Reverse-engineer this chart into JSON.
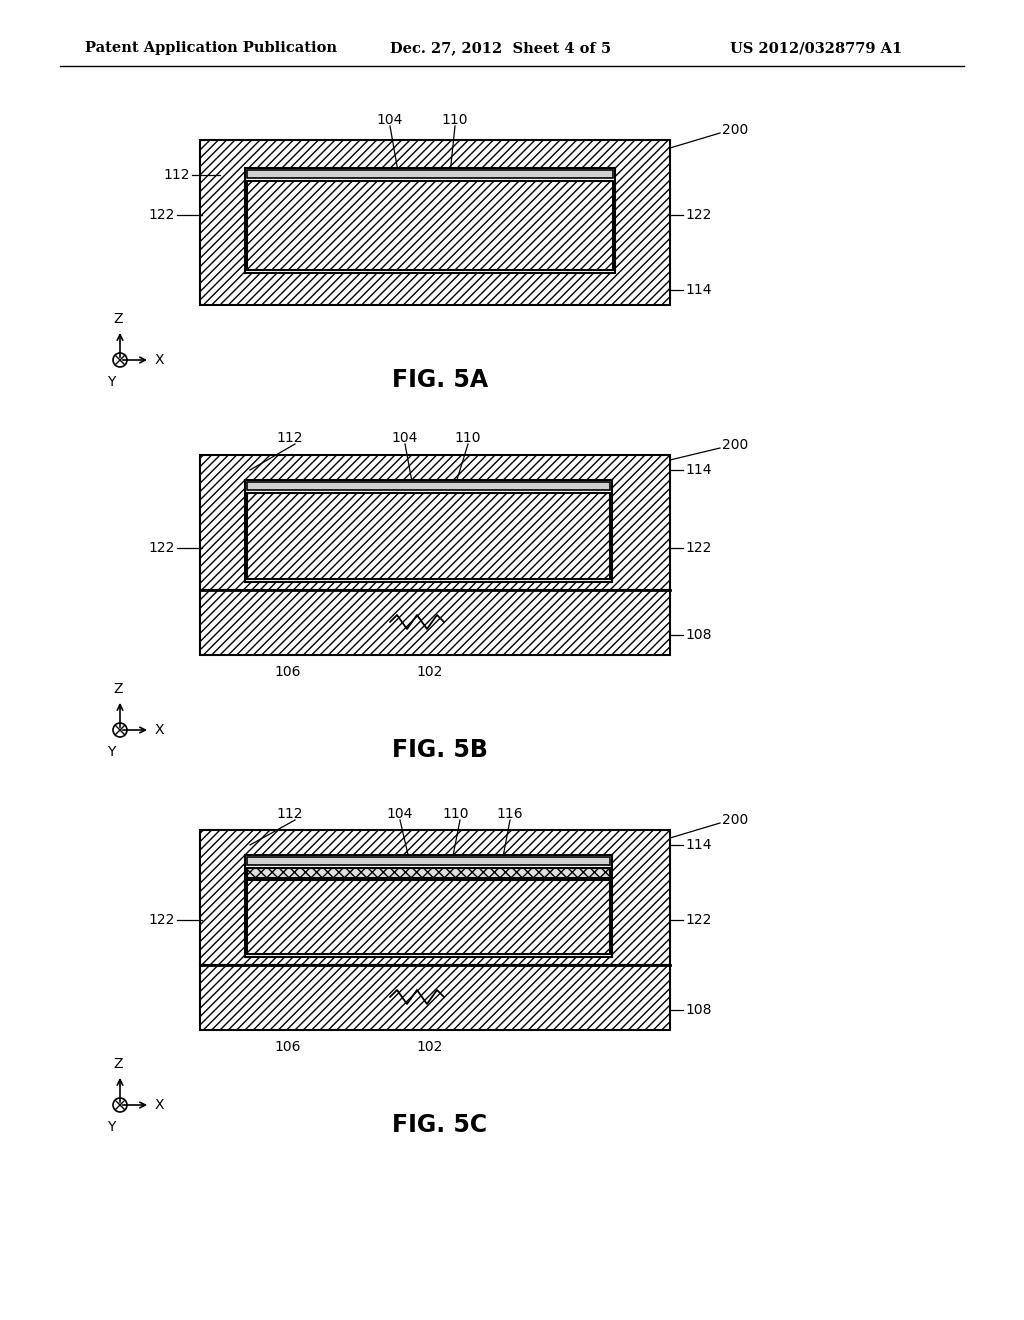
{
  "header_left": "Patent Application Publication",
  "header_mid": "Dec. 27, 2012  Sheet 4 of 5",
  "header_right": "US 2012/0328779 A1",
  "fig5a_label": "FIG. 5A",
  "fig5b_label": "FIG. 5B",
  "fig5c_label": "FIG. 5C",
  "bg_color": "#ffffff"
}
